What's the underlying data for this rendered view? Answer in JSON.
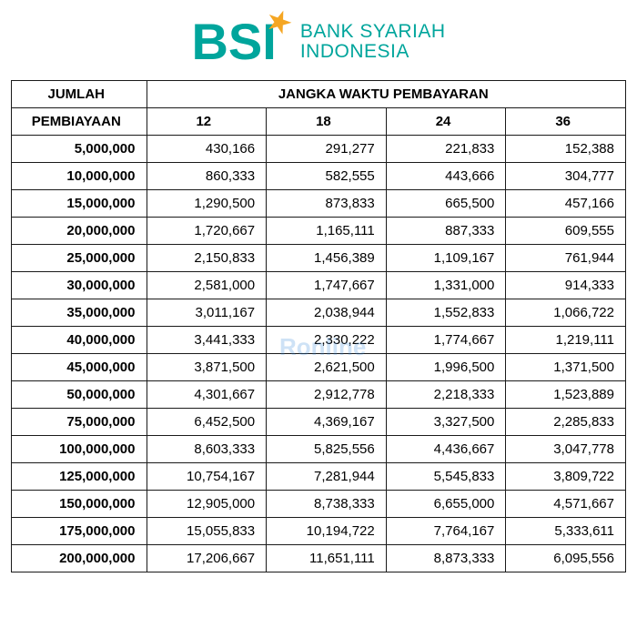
{
  "brand": {
    "abbrev": "BSI",
    "line1": "BANK SYARIAH",
    "line2": "INDONESIA",
    "primary_color": "#00a59c",
    "accent_color": "#f5a623"
  },
  "watermark": "Ronline",
  "table": {
    "header_amount_line1": "JUMLAH",
    "header_amount_line2": "PEMBIAYAAN",
    "header_term": "JANGKA WAKTU PEMBAYARAN",
    "terms": [
      "12",
      "18",
      "24",
      "36"
    ],
    "rows": [
      {
        "amount": "5,000,000",
        "values": [
          "430,166",
          "291,277",
          "221,833",
          "152,388"
        ]
      },
      {
        "amount": "10,000,000",
        "values": [
          "860,333",
          "582,555",
          "443,666",
          "304,777"
        ]
      },
      {
        "amount": "15,000,000",
        "values": [
          "1,290,500",
          "873,833",
          "665,500",
          "457,166"
        ]
      },
      {
        "amount": "20,000,000",
        "values": [
          "1,720,667",
          "1,165,111",
          "887,333",
          "609,555"
        ]
      },
      {
        "amount": "25,000,000",
        "values": [
          "2,150,833",
          "1,456,389",
          "1,109,167",
          "761,944"
        ]
      },
      {
        "amount": "30,000,000",
        "values": [
          "2,581,000",
          "1,747,667",
          "1,331,000",
          "914,333"
        ]
      },
      {
        "amount": "35,000,000",
        "values": [
          "3,011,167",
          "2,038,944",
          "1,552,833",
          "1,066,722"
        ]
      },
      {
        "amount": "40,000,000",
        "values": [
          "3,441,333",
          "2,330,222",
          "1,774,667",
          "1,219,111"
        ]
      },
      {
        "amount": "45,000,000",
        "values": [
          "3,871,500",
          "2,621,500",
          "1,996,500",
          "1,371,500"
        ]
      },
      {
        "amount": "50,000,000",
        "values": [
          "4,301,667",
          "2,912,778",
          "2,218,333",
          "1,523,889"
        ]
      },
      {
        "amount": "75,000,000",
        "values": [
          "6,452,500",
          "4,369,167",
          "3,327,500",
          "2,285,833"
        ]
      },
      {
        "amount": "100,000,000",
        "values": [
          "8,603,333",
          "5,825,556",
          "4,436,667",
          "3,047,778"
        ]
      },
      {
        "amount": "125,000,000",
        "values": [
          "10,754,167",
          "7,281,944",
          "5,545,833",
          "3,809,722"
        ]
      },
      {
        "amount": "150,000,000",
        "values": [
          "12,905,000",
          "8,738,333",
          "6,655,000",
          "4,571,667"
        ]
      },
      {
        "amount": "175,000,000",
        "values": [
          "15,055,833",
          "10,194,722",
          "7,764,167",
          "5,333,611"
        ]
      },
      {
        "amount": "200,000,000",
        "values": [
          "17,206,667",
          "11,651,111",
          "8,873,333",
          "6,095,556"
        ]
      }
    ],
    "border_color": "#1a1a1a",
    "font_family": "Segoe UI, Arial, sans-serif",
    "amount_bold": true
  }
}
